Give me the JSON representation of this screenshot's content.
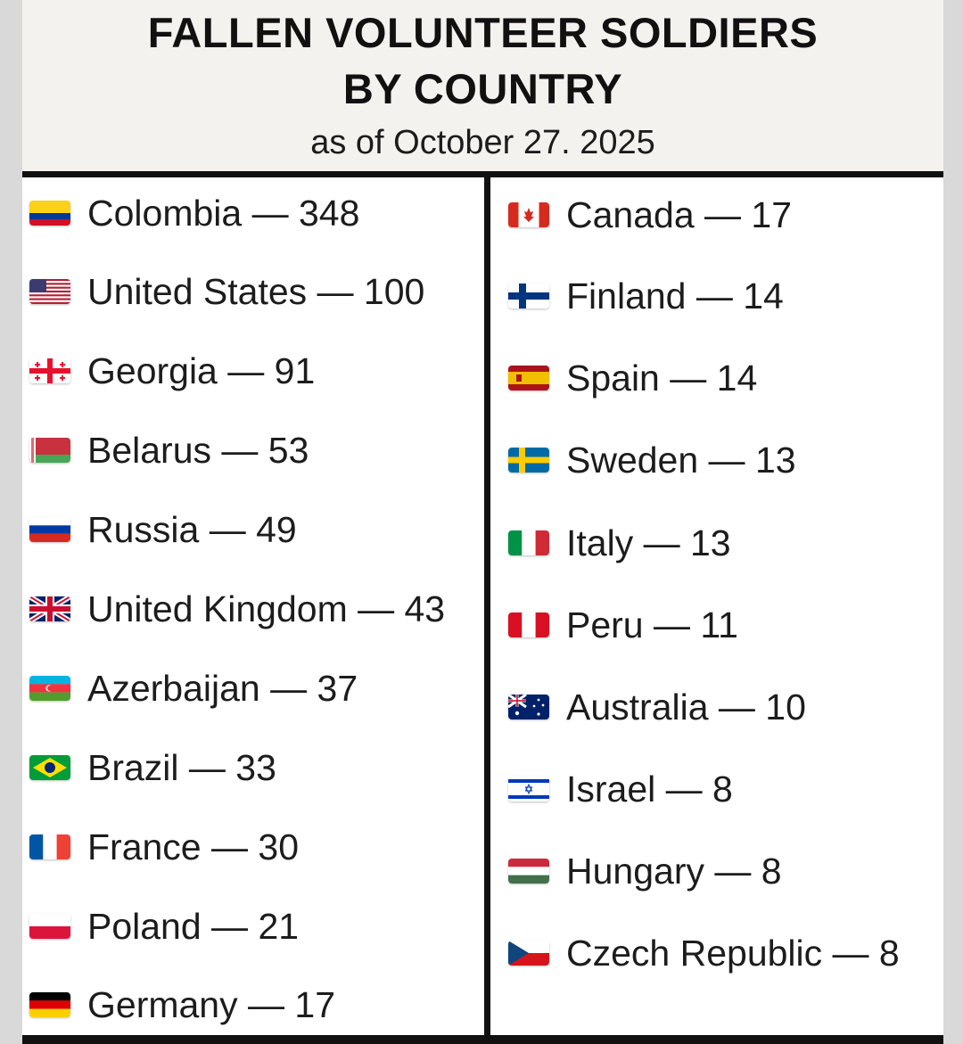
{
  "header": {
    "title_line1": "FALLEN VOLUNTEER SOLDIERS",
    "title_line2": "BY COUNTRY",
    "subtitle": "as of October 27. 2025"
  },
  "left_column": [
    {
      "label": "Colombia — 348",
      "country": "Colombia",
      "count": 348,
      "flag_icon": "colombia-flag-icon"
    },
    {
      "label": "United States — 100",
      "country": "United States",
      "count": 100,
      "flag_icon": "united-states-flag-icon"
    },
    {
      "label": "Georgia — 91",
      "country": "Georgia",
      "count": 91,
      "flag_icon": "georgia-flag-icon"
    },
    {
      "label": "Belarus — 53",
      "country": "Belarus",
      "count": 53,
      "flag_icon": "belarus-flag-icon"
    },
    {
      "label": "Russia — 49",
      "country": "Russia",
      "count": 49,
      "flag_icon": "russia-flag-icon"
    },
    {
      "label": "United Kingdom — 43",
      "country": "United Kingdom",
      "count": 43,
      "flag_icon": "united-kingdom-flag-icon"
    },
    {
      "label": "Azerbaijan — 37",
      "country": "Azerbaijan",
      "count": 37,
      "flag_icon": "azerbaijan-flag-icon"
    },
    {
      "label": "Brazil — 33",
      "country": "Brazil",
      "count": 33,
      "flag_icon": "brazil-flag-icon"
    },
    {
      "label": "France — 30",
      "country": "France",
      "count": 30,
      "flag_icon": "france-flag-icon"
    },
    {
      "label": "Poland — 21",
      "country": "Poland",
      "count": 21,
      "flag_icon": "poland-flag-icon"
    },
    {
      "label": "Germany — 17",
      "country": "Germany",
      "count": 17,
      "flag_icon": "germany-flag-icon"
    }
  ],
  "right_column": [
    {
      "label": "Canada — 17",
      "country": "Canada",
      "count": 17,
      "flag_icon": "canada-flag-icon"
    },
    {
      "label": "Finland — 14",
      "country": "Finland",
      "count": 14,
      "flag_icon": "finland-flag-icon"
    },
    {
      "label": "Spain — 14",
      "country": "Spain",
      "count": 14,
      "flag_icon": "spain-flag-icon"
    },
    {
      "label": "Sweden — 13",
      "country": "Sweden",
      "count": 13,
      "flag_icon": "sweden-flag-icon"
    },
    {
      "label": "Italy — 13",
      "country": "Italy",
      "count": 13,
      "flag_icon": "italy-flag-icon"
    },
    {
      "label": "Peru — 11",
      "country": "Peru",
      "count": 11,
      "flag_icon": "peru-flag-icon"
    },
    {
      "label": "Australia — 10",
      "country": "Australia",
      "count": 10,
      "flag_icon": "australia-flag-icon"
    },
    {
      "label": "Israel — 8",
      "country": "Israel",
      "count": 8,
      "flag_icon": "israel-flag-icon"
    },
    {
      "label": "Hungary — 8",
      "country": "Hungary",
      "count": 8,
      "flag_icon": "hungary-flag-icon"
    },
    {
      "label": "Czech Republic — 8",
      "country": "Czech Republic",
      "count": 8,
      "flag_icon": "czech-republic-flag-icon"
    }
  ],
  "colors": {
    "header_background": "#f4f2ee",
    "rule": "#111111",
    "text": "#1c1c1c"
  }
}
